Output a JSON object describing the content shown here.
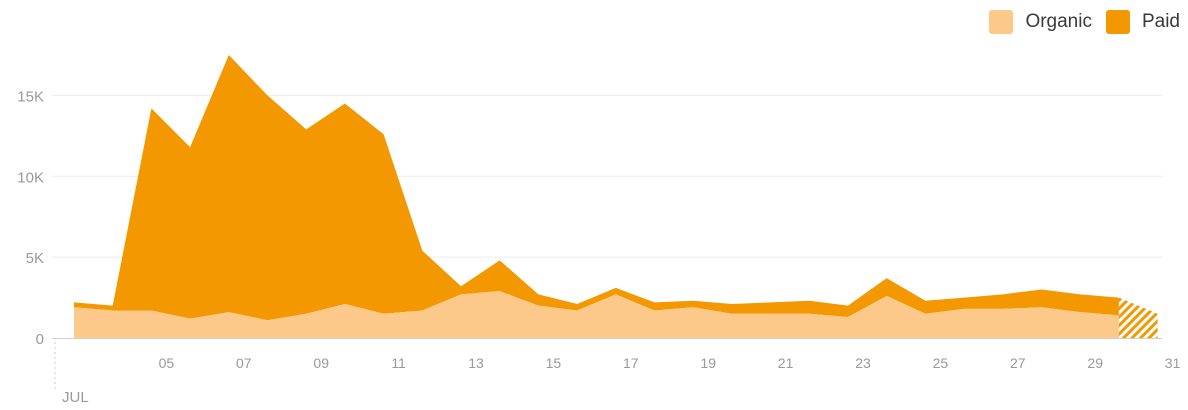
{
  "chart_data": {
    "type": "area",
    "stacked": true,
    "title": "",
    "xlabel": "",
    "ylabel": "",
    "ylim": [
      0,
      17500
    ],
    "grid": true,
    "legend_position": "top-right",
    "x_start_day": 3,
    "x_month_label": "JUL",
    "x_tick_labels": [
      "05",
      "07",
      "09",
      "11",
      "13",
      "15",
      "17",
      "19",
      "21",
      "23",
      "25",
      "27",
      "29",
      "31"
    ],
    "y_tick_labels": [
      "0",
      "5K",
      "10K",
      "15K"
    ],
    "y_tick_values": [
      0,
      5000,
      10000,
      15000
    ],
    "series": [
      {
        "name": "Organic",
        "color": "#fcc98a",
        "values": [
          1900,
          1700,
          1700,
          1200,
          1600,
          1100,
          1500,
          2100,
          1500,
          1700,
          2700,
          2900,
          2000,
          1700,
          2700,
          1700,
          1900,
          1500,
          1500,
          1500,
          1300,
          2600,
          1500,
          1800,
          1800,
          1900,
          1600,
          1400,
          1100
        ]
      },
      {
        "name": "Paid",
        "color": "#f39800",
        "values": [
          300,
          300,
          12500,
          10600,
          15900,
          13900,
          11400,
          12400,
          11100,
          3700,
          500,
          1900,
          700,
          400,
          400,
          500,
          400,
          600,
          700,
          800,
          700,
          1100,
          800,
          700,
          900,
          1100,
          1100,
          1100,
          400
        ]
      }
    ],
    "incomplete_last_point": true
  }
}
